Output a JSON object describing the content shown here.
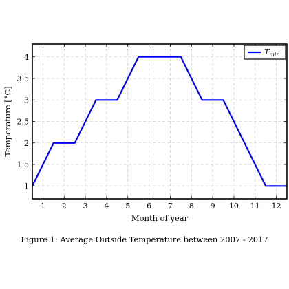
{
  "figure": {
    "caption": "Figure 1: Average Outside Temperature between 2007 - 2017"
  },
  "chart_data": {
    "type": "line",
    "title": "",
    "xlabel": "Month of year",
    "ylabel": "Temperature [°C]",
    "x": [
      0.5,
      1.5,
      2.5,
      3.5,
      4.5,
      5.5,
      6.5,
      7.5,
      8.5,
      9.5,
      10.5,
      11.5,
      12.5
    ],
    "xlim": [
      0.5,
      12.5
    ],
    "ylim": [
      0.7,
      4.3
    ],
    "xticks": [
      1,
      2,
      3,
      4,
      5,
      6,
      7,
      8,
      9,
      10,
      11,
      12
    ],
    "xtick_labels": [
      "1",
      "2",
      "3",
      "4",
      "5",
      "6",
      "7",
      "8",
      "9",
      "10",
      "11",
      "12"
    ],
    "yticks": [
      1,
      1.5,
      2,
      2.5,
      3,
      3.5,
      4
    ],
    "ytick_labels": [
      "1",
      "1.5",
      "2",
      "2.5",
      "3",
      "3.5",
      "4"
    ],
    "grid": true,
    "grid_style": "dashed",
    "legend_position": "top-right",
    "series": [
      {
        "name": "T",
        "name_subscript": "min",
        "color": "#0000ff",
        "values": [
          1,
          2,
          2,
          3,
          3,
          4,
          4,
          4,
          3,
          3,
          2,
          1,
          1
        ]
      }
    ]
  }
}
